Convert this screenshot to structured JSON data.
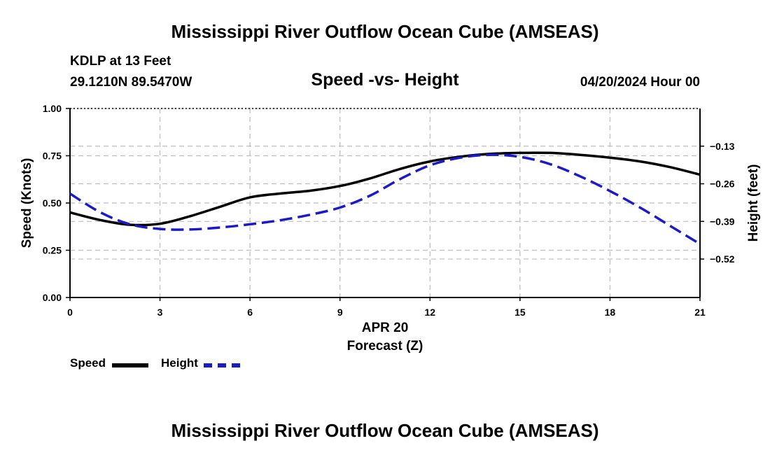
{
  "header": {
    "title": "Mississippi River Outflow Ocean Cube (AMSEAS)",
    "station": "KDLP at 13 Feet",
    "coords": "29.1210N  89.5470W",
    "date": "04/20/2024 Hour 00",
    "footer_title": "Mississippi River Outflow Ocean Cube (AMSEAS)"
  },
  "legend": {
    "speed_label": "Speed",
    "height_label": "Height"
  },
  "colors": {
    "speed": "#000000",
    "height": "#1a1acc",
    "grid": "#bdbdbd"
  },
  "chart_data": {
    "type": "line",
    "title": "Speed -vs- Height",
    "xlabel": "Forecast (Z)",
    "xsublabel": "APR 20",
    "ylabel": "Speed (Knots)",
    "y2label": "Height (feet)",
    "xlim": [
      0,
      21
    ],
    "ylim": [
      0,
      1.0
    ],
    "y2lim": [
      -0.6528,
      0.0
    ],
    "x_ticks": [
      0,
      3,
      6,
      9,
      12,
      15,
      18,
      21
    ],
    "x_tick_labels": [
      "0",
      "3",
      "6",
      "9",
      "12",
      "15",
      "18",
      "21"
    ],
    "y_ticks": [
      0.0,
      0.25,
      0.5,
      0.75,
      1.0
    ],
    "y_tick_labels": [
      "0.00",
      "0.25",
      "0.50",
      "0.75",
      "1.00"
    ],
    "y2_ticks": [
      -0.13,
      -0.26,
      -0.39,
      -0.52
    ],
    "y2_tick_labels": [
      "−0.13",
      "−0.26",
      "−0.39",
      "−0.52"
    ],
    "grid": true,
    "series": [
      {
        "name": "Speed",
        "axis": "left",
        "style": "solid",
        "x": [
          0,
          1,
          2,
          3,
          4,
          5,
          6,
          7,
          8,
          9,
          10,
          11,
          12,
          13,
          14,
          15,
          16,
          17,
          18,
          19,
          20,
          21
        ],
        "values": [
          0.45,
          0.41,
          0.385,
          0.39,
          0.43,
          0.48,
          0.53,
          0.55,
          0.565,
          0.59,
          0.63,
          0.68,
          0.72,
          0.745,
          0.76,
          0.765,
          0.765,
          0.755,
          0.74,
          0.72,
          0.69,
          0.65
        ]
      },
      {
        "name": "Height",
        "axis": "right",
        "style": "dashed",
        "x": [
          0,
          1,
          2,
          3,
          4,
          5,
          6,
          7,
          8,
          9,
          10,
          11,
          12,
          13,
          14,
          15,
          16,
          17,
          18,
          19,
          20,
          21
        ],
        "values": [
          -0.294,
          -0.358,
          -0.4,
          -0.416,
          -0.418,
          -0.411,
          -0.4,
          -0.386,
          -0.367,
          -0.342,
          -0.301,
          -0.244,
          -0.196,
          -0.17,
          -0.16,
          -0.167,
          -0.192,
          -0.234,
          -0.285,
          -0.342,
          -0.405,
          -0.468
        ]
      }
    ]
  }
}
